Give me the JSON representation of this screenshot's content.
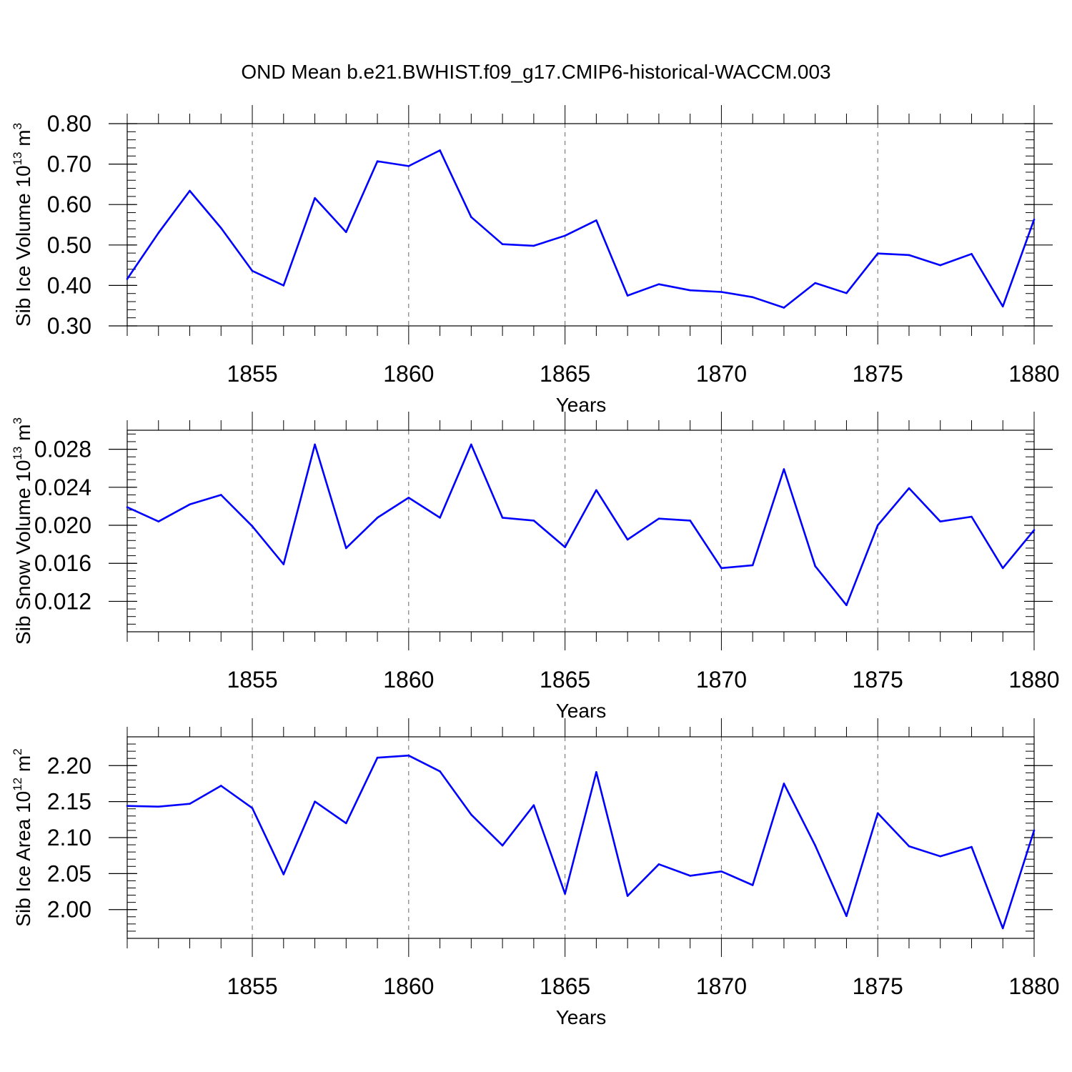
{
  "figure": {
    "title": "OND Mean b.e21.BWHIST.f09_g17.CMIP6-historical-WACCM.003",
    "line_color": "#0000ff",
    "axis_color": "#000000"
  },
  "chart_data": [
    {
      "type": "line",
      "ylabel": "Sib Ice Volume 10",
      "ylabel_exp": "13",
      "ylabel_unit": " m",
      "ylabel_unit_exp": "3",
      "xlabel": "Years",
      "xlim": [
        1851,
        1880
      ],
      "ylim": [
        0.3,
        0.8
      ],
      "yticks": [
        0.3,
        0.4,
        0.5,
        0.6,
        0.7,
        0.8
      ],
      "ytick_labels": [
        "0.30",
        "0.40",
        "0.50",
        "0.60",
        "0.70",
        "0.80"
      ],
      "y_minor_step": 0.02,
      "xticks": [
        1855,
        1860,
        1865,
        1870,
        1875,
        1880
      ],
      "xtick_labels": [
        "1855",
        "1860",
        "1865",
        "1870",
        "1875",
        "1880"
      ],
      "x": [
        1851,
        1852,
        1853,
        1854,
        1855,
        1856,
        1857,
        1858,
        1859,
        1860,
        1861,
        1862,
        1863,
        1864,
        1865,
        1866,
        1867,
        1868,
        1869,
        1870,
        1871,
        1872,
        1873,
        1874,
        1875,
        1876,
        1877,
        1878,
        1879,
        1880
      ],
      "values": [
        0.416,
        0.53,
        0.634,
        0.542,
        0.436,
        0.4,
        0.616,
        0.532,
        0.707,
        0.695,
        0.734,
        0.569,
        0.502,
        0.498,
        0.523,
        0.561,
        0.375,
        0.403,
        0.388,
        0.384,
        0.371,
        0.345,
        0.406,
        0.381,
        0.479,
        0.475,
        0.45,
        0.478,
        0.348,
        0.563
      ]
    },
    {
      "type": "line",
      "ylabel": "Sib Snow Volume 10",
      "ylabel_exp": "13",
      "ylabel_unit": " m",
      "ylabel_unit_exp": "3",
      "xlabel": "Years",
      "xlim": [
        1851,
        1880
      ],
      "ylim": [
        0.0088,
        0.03
      ],
      "yticks": [
        0.012,
        0.016,
        0.02,
        0.024,
        0.028
      ],
      "ytick_labels": [
        "0.012",
        "0.016",
        "0.020",
        "0.024",
        "0.028"
      ],
      "y_minor_step": 0.0008,
      "xticks": [
        1855,
        1860,
        1865,
        1870,
        1875,
        1880
      ],
      "xtick_labels": [
        "1855",
        "1860",
        "1865",
        "1870",
        "1875",
        "1880"
      ],
      "x": [
        1851,
        1852,
        1853,
        1854,
        1855,
        1856,
        1857,
        1858,
        1859,
        1860,
        1861,
        1862,
        1863,
        1864,
        1865,
        1866,
        1867,
        1868,
        1869,
        1870,
        1871,
        1872,
        1873,
        1874,
        1875,
        1876,
        1877,
        1878,
        1879,
        1880
      ],
      "values": [
        0.0219,
        0.0204,
        0.0222,
        0.0232,
        0.0199,
        0.0159,
        0.0285,
        0.0176,
        0.0208,
        0.0229,
        0.0208,
        0.0285,
        0.0208,
        0.0205,
        0.0177,
        0.0237,
        0.0185,
        0.0207,
        0.0205,
        0.0155,
        0.0158,
        0.0259,
        0.0157,
        0.0116,
        0.02,
        0.0239,
        0.0204,
        0.0209,
        0.0155,
        0.0195
      ]
    },
    {
      "type": "line",
      "ylabel": "Sib Ice Area 10",
      "ylabel_exp": "12",
      "ylabel_unit": " m",
      "ylabel_unit_exp": "2",
      "xlabel": "Years",
      "xlim": [
        1851,
        1880
      ],
      "ylim": [
        1.96,
        2.24
      ],
      "yticks": [
        2.0,
        2.05,
        2.1,
        2.15,
        2.2
      ],
      "ytick_labels": [
        "2.00",
        "2.05",
        "2.10",
        "2.15",
        "2.20"
      ],
      "y_minor_step": 0.01,
      "xticks": [
        1855,
        1860,
        1865,
        1870,
        1875,
        1880
      ],
      "xtick_labels": [
        "1855",
        "1860",
        "1865",
        "1870",
        "1875",
        "1880"
      ],
      "x": [
        1851,
        1852,
        1853,
        1854,
        1855,
        1856,
        1857,
        1858,
        1859,
        1860,
        1861,
        1862,
        1863,
        1864,
        1865,
        1866,
        1867,
        1868,
        1869,
        1870,
        1871,
        1872,
        1873,
        1874,
        1875,
        1876,
        1877,
        1878,
        1879,
        1880
      ],
      "values": [
        2.144,
        2.143,
        2.147,
        2.172,
        2.141,
        2.049,
        2.15,
        2.12,
        2.211,
        2.214,
        2.192,
        2.132,
        2.089,
        2.145,
        2.022,
        2.191,
        2.019,
        2.063,
        2.047,
        2.053,
        2.034,
        2.175,
        2.089,
        1.991,
        2.134,
        2.088,
        2.074,
        2.087,
        1.974,
        2.11
      ]
    }
  ]
}
